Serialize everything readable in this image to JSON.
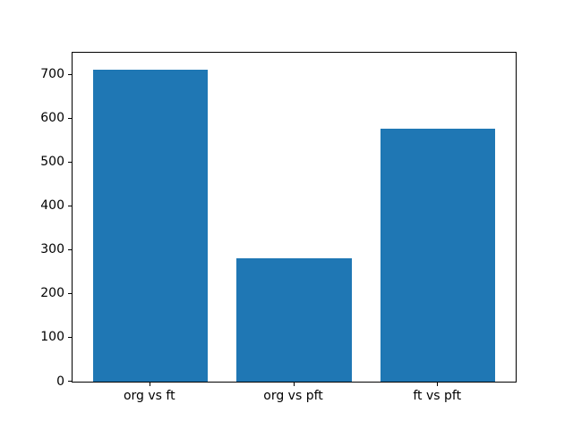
{
  "chart_data": {
    "type": "bar",
    "title": "",
    "xlabel": "",
    "ylabel": "",
    "categories": [
      "org vs ft",
      "org vs pft",
      "ft vs pft"
    ],
    "values": [
      712,
      282,
      576
    ],
    "ylim": [
      0,
      750
    ],
    "yticks": [
      0,
      100,
      200,
      300,
      400,
      500,
      600,
      700
    ],
    "bar_color": "#1f77b4",
    "bar_width_fraction": 0.8,
    "grid": false,
    "legend": null,
    "background_color": "#ffffff",
    "axes_color": "#000000",
    "tick_label_color": "#000000"
  }
}
